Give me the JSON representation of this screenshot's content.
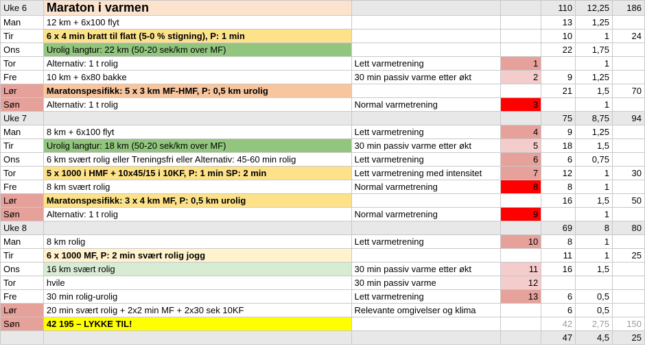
{
  "colors": {
    "week_bg": "#e8e8e8",
    "lor_day_bg": "#e6a19b",
    "son_day_bg": "#e6a19b",
    "title_bg": "#fbe3cd",
    "hard_bg": "#fde28a",
    "easy_long_bg": "#92c57e",
    "mp_bg": "#f7c59e",
    "light_green_bg": "#d8ebd3",
    "light_yellow_bg": "#fff2cc",
    "race_bg": "#ffff00",
    "heat_1": "#e6a19b",
    "heat_2": "#f3cccb",
    "heat_3": "#ff0000"
  },
  "rows": [
    {
      "cells": [
        "Uke 6",
        "Maraton i varmen",
        "",
        "",
        "110",
        "12,25",
        "186"
      ],
      "kind": "week",
      "titleRow": true
    },
    {
      "cells": [
        "Man",
        "12 km + 6x100 flyt",
        "",
        "",
        "13",
        "1,25",
        ""
      ]
    },
    {
      "cells": [
        "Tir",
        "6 x 4 min bratt til flatt (5-0 % stigning), P: 1 min",
        "",
        "",
        "10",
        "1",
        "24"
      ],
      "wbg": "hard_bg",
      "bold": true
    },
    {
      "cells": [
        "Ons",
        "Urolig langtur: 22 km (50-20 sek/km over MF)",
        "",
        "",
        "22",
        "1,75",
        ""
      ],
      "wbg": "easy_long_bg"
    },
    {
      "cells": [
        "Tor",
        "Alternativ: 1 t rolig",
        "Lett varmetrening",
        "1",
        "",
        "1",
        ""
      ],
      "heat": "heat_1"
    },
    {
      "cells": [
        "Fre",
        "10 km + 6x80 bakke",
        "30 min passiv varme etter økt",
        "2",
        "9",
        "1,25",
        ""
      ],
      "heat": "heat_2"
    },
    {
      "cells": [
        "Lør",
        "Maratonspesifikk: 5 x 3 km MF-HMF, P: 0,5 km urolig",
        "",
        "",
        "21",
        "1,5",
        "70"
      ],
      "dbg": "lor_day_bg",
      "wbg": "mp_bg",
      "bold": true
    },
    {
      "cells": [
        "Søn",
        "Alternativ: 1 t rolig",
        "Normal varmetrening",
        "3",
        "",
        "1",
        ""
      ],
      "dbg": "son_day_bg",
      "heat": "heat_3"
    },
    {
      "cells": [
        "Uke 7",
        "",
        "",
        "",
        "75",
        "8,75",
        "94"
      ],
      "kind": "week"
    },
    {
      "cells": [
        "Man",
        "8 km + 6x100 flyt",
        "Lett varmetrening",
        "4",
        "9",
        "1,25",
        ""
      ],
      "heat": "heat_1"
    },
    {
      "cells": [
        "Tir",
        "Urolig langtur: 18 km (50-20 sek/km over MF)",
        "30 min passiv varme etter økt",
        "5",
        "18",
        "1,5",
        ""
      ],
      "wbg": "easy_long_bg",
      "heat": "heat_2"
    },
    {
      "cells": [
        "Ons",
        "6 km svært rolig eller Treningsfri eller Alternativ: 45-60 min rolig",
        "Lett varmetrening",
        "6",
        "6",
        "0,75",
        ""
      ],
      "heat": "heat_1"
    },
    {
      "cells": [
        "Tor",
        "5 x 1000 i HMF + 10x45/15 i 10KF, P: 1 min SP: 2 min",
        "Lett varmetrening med intensitet",
        "7",
        "12",
        "1",
        "30"
      ],
      "wbg": "hard_bg",
      "bold": true,
      "heat": "heat_1"
    },
    {
      "cells": [
        "Fre",
        "8 km svært rolig",
        "Normal varmetrening",
        "8",
        "8",
        "1",
        ""
      ],
      "heat": "heat_3"
    },
    {
      "cells": [
        "Lør",
        "Maratonspesifikk: 3 x 4 km MF, P: 0,5 km urolig",
        "",
        "",
        "16",
        "1,5",
        "50"
      ],
      "dbg": "lor_day_bg",
      "wbg": "hard_bg",
      "bold": true
    },
    {
      "cells": [
        "Søn",
        "Alternativ: 1 t rolig",
        "Normal varmetrening",
        "9",
        "",
        "1",
        ""
      ],
      "dbg": "son_day_bg",
      "heat": "heat_3"
    },
    {
      "cells": [
        "Uke 8",
        "",
        "",
        "",
        "69",
        "8",
        "80"
      ],
      "kind": "week"
    },
    {
      "cells": [
        "Man",
        "8 km rolig",
        "Lett varmetrening",
        "10",
        "8",
        "1",
        ""
      ],
      "heat": "heat_1"
    },
    {
      "cells": [
        "Tir",
        "6 x 1000 MF, P: 2 min svært rolig jogg",
        "",
        "",
        "11",
        "1",
        "25"
      ],
      "wbg": "light_yellow_bg",
      "bold": true
    },
    {
      "cells": [
        "Ons",
        "16 km svært rolig",
        "30 min passiv varme etter økt",
        "11",
        "16",
        "1,5",
        ""
      ],
      "wbg": "light_green_bg",
      "heat": "heat_2"
    },
    {
      "cells": [
        "Tor",
        "hvile",
        "30 min passiv varme",
        "12",
        "",
        "",
        ""
      ],
      "heat": "heat_2"
    },
    {
      "cells": [
        "Fre",
        "30 min rolig-urolig",
        "Lett varmetrening",
        "13",
        "6",
        "0,5",
        ""
      ],
      "heat": "heat_1"
    },
    {
      "cells": [
        "Lør",
        "20 min svært rolig + 2x2 min MF + 2x30 sek 10KF",
        "Relevante omgivelser og klima",
        "",
        "6",
        "0,5",
        ""
      ],
      "dbg": "lor_day_bg"
    },
    {
      "cells": [
        "Søn",
        "42 195 – LYKKE TIL!",
        "",
        "",
        "42",
        "2,75",
        "150"
      ],
      "dbg": "son_day_bg",
      "wbg": "race_bg",
      "bold": true,
      "muted": true
    },
    {
      "cells": [
        "",
        "",
        "",
        "",
        "47",
        "4,5",
        "25"
      ],
      "kind": "week"
    }
  ]
}
